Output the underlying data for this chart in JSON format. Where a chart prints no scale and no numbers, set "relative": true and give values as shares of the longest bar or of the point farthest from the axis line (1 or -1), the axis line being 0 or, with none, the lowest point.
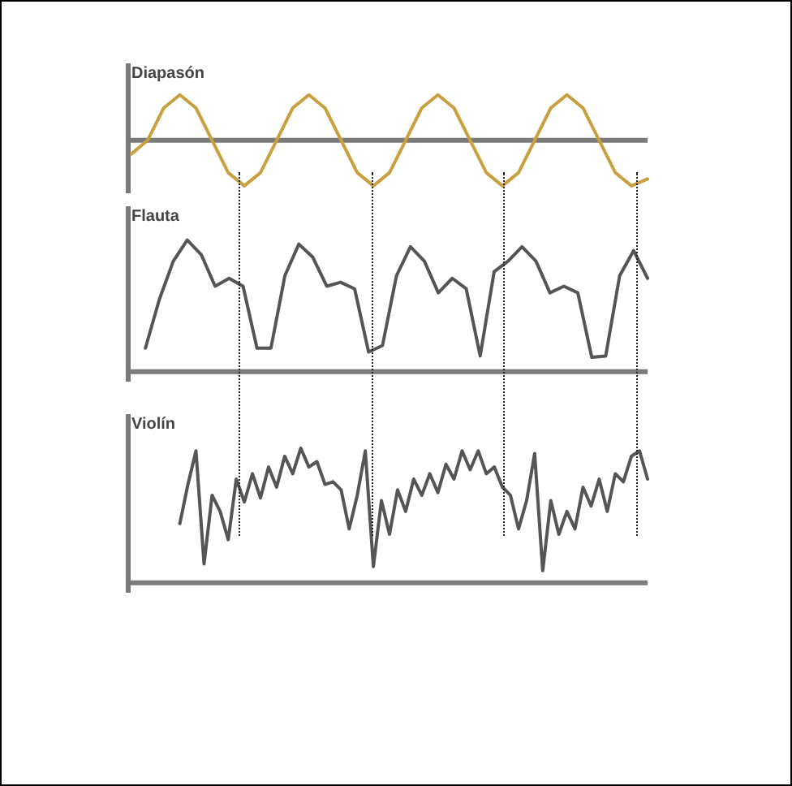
{
  "chart_data": [
    {
      "type": "line",
      "title": "Diapasón",
      "relative": true,
      "marker": "none",
      "line_style": "solid",
      "categories": [
        null,
        null,
        null,
        null,
        null,
        null,
        null,
        null,
        null,
        null,
        null,
        null,
        null,
        null,
        null,
        null,
        null,
        null,
        null,
        null,
        null,
        null,
        null,
        null,
        null,
        null,
        null,
        null,
        null,
        null,
        null,
        null,
        null
      ],
      "series": [
        {
          "color": "#c8a040",
          "values": [
            -0.3,
            0,
            0.71,
            1,
            0.71,
            0,
            -0.71,
            -1,
            -0.71,
            0,
            0.71,
            1,
            0.71,
            0,
            -0.71,
            -1,
            -0.71,
            0,
            0.71,
            1,
            0.71,
            0,
            -0.71,
            -1,
            -0.71,
            0,
            0.71,
            1,
            0.71,
            0,
            -0.71,
            -1,
            -0.85
          ]
        }
      ]
    },
    {
      "type": "line",
      "title": "Flauta",
      "relative": true,
      "marker": "none",
      "line_style": "solid",
      "categories": [
        null,
        null,
        null,
        null,
        null,
        null,
        null,
        null,
        null,
        null,
        null,
        null,
        null,
        null,
        null,
        null,
        null,
        null,
        null,
        null,
        null,
        null,
        null,
        null,
        null,
        null,
        null,
        null,
        null,
        null,
        null,
        null,
        null,
        null,
        null,
        null,
        null,
        null
      ],
      "series": [
        {
          "color": "#555555",
          "values": [
            null,
            0.18,
            0.55,
            0.84,
            1,
            0.89,
            0.65,
            0.71,
            0.65,
            0.18,
            0.18,
            0.73,
            0.97,
            0.87,
            0.65,
            0.68,
            0.63,
            0.15,
            0.2,
            0.73,
            0.95,
            0.84,
            0.6,
            0.71,
            0.63,
            0.12,
            0.76,
            0.84,
            0.95,
            0.84,
            0.6,
            0.65,
            0.6,
            0.11,
            0.12,
            0.73,
            0.92,
            0.71
          ]
        }
      ]
    },
    {
      "type": "line",
      "title": "Violín",
      "relative": true,
      "marker": "none",
      "line_style": "solid",
      "categories": [
        null,
        null,
        null,
        null,
        null,
        null,
        null,
        null,
        null,
        null,
        null,
        null,
        null,
        null,
        null,
        null,
        null,
        null,
        null,
        null,
        null,
        null,
        null,
        null,
        null,
        null,
        null,
        null,
        null,
        null,
        null,
        null,
        null,
        null,
        null,
        null,
        null,
        null,
        null,
        null,
        null,
        null,
        null,
        null,
        null,
        null,
        null,
        null,
        null,
        null,
        null,
        null,
        null,
        null,
        null,
        null,
        null,
        null,
        null,
        null,
        null,
        null,
        null,
        null,
        null
      ],
      "series": [
        {
          "color": "#555555",
          "values": [
            null,
            null,
            null,
            null,
            null,
            null,
            0.44,
            0.73,
            0.98,
            0.14,
            0.65,
            0.53,
            0.32,
            0.77,
            0.6,
            0.81,
            0.63,
            0.86,
            0.71,
            0.94,
            0.81,
            1,
            0.86,
            0.9,
            0.73,
            0.75,
            0.69,
            0.4,
            0.65,
            0.98,
            0.12,
            0.61,
            0.36,
            0.69,
            0.53,
            0.77,
            0.65,
            0.81,
            0.67,
            0.88,
            0.77,
            0.98,
            0.84,
            0.98,
            0.81,
            0.86,
            0.71,
            0.65,
            0.4,
            0.61,
            0.96,
            0.09,
            0.61,
            0.36,
            0.53,
            0.4,
            0.71,
            0.57,
            0.77,
            0.53,
            0.81,
            0.75,
            0.94,
            0.98,
            0.77
          ]
        }
      ]
    }
  ]
}
